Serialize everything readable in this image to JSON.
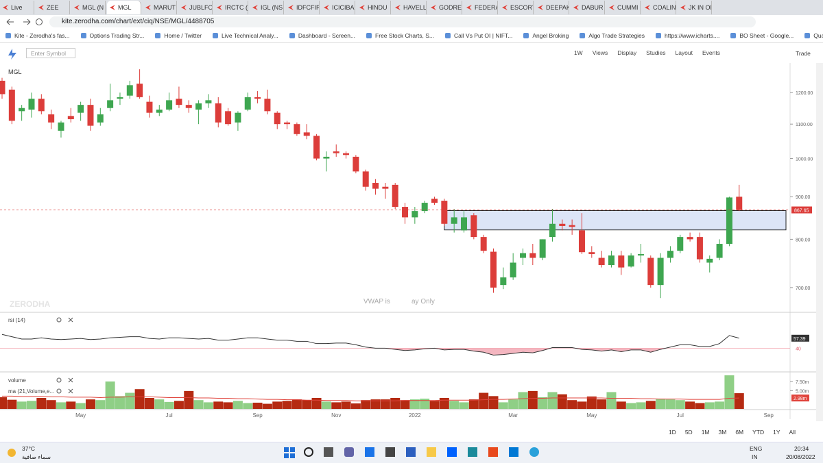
{
  "browser": {
    "tabs": [
      "Live",
      "ZEE",
      "MGL (N",
      "MGL",
      "MARUT",
      "JUBLFO",
      "IRCTC (",
      "IGL (NS",
      "IDFCFIR",
      "ICICIBA",
      "HINDU",
      "HAVELL",
      "GODRE",
      "FEDERA",
      "ESCORT",
      "DEEPAK",
      "DABUR",
      "CUMMI",
      "COALIN",
      "JK IN OF"
    ],
    "url": "kite.zerodha.com/chart/ext/ciq/NSE/MGL/4488705",
    "bookmarks": [
      "Kite - Zerodha's fas...",
      "Options Trading Str...",
      "Home / Twitter",
      "Live Technical Analy...",
      "Dashboard - Screen...",
      "Free Stock Charts, S...",
      "Call Vs Put OI | NIFT...",
      "Angel Broking",
      "Algo Trade Strategies",
      "https://www.icharts....",
      "BO Sheet - Google...",
      "Quantiply"
    ]
  },
  "toolbar": {
    "symbol_placeholder": "Enter Symbol",
    "buttons": [
      "1W",
      "Views",
      "Display",
      "Studies",
      "Layout",
      "Events"
    ],
    "trade": "Trade"
  },
  "chart_data": [
    {
      "type": "candlestick",
      "title": "MGL",
      "log_scale": true,
      "grid": false,
      "up_color": "#3ea650",
      "down_color": "#dc3d3a",
      "categories": [
        null,
        null,
        null,
        null,
        null,
        null,
        null,
        null,
        "May",
        null,
        null,
        null,
        null,
        null,
        null,
        null,
        null,
        "Jul",
        null,
        null,
        null,
        null,
        null,
        null,
        null,
        null,
        "Sep",
        null,
        null,
        null,
        null,
        null,
        null,
        null,
        "Nov",
        null,
        null,
        null,
        null,
        null,
        null,
        null,
        "2022",
        null,
        null,
        null,
        null,
        null,
        null,
        null,
        null,
        null,
        "Mar",
        null,
        null,
        null,
        null,
        null,
        null,
        null,
        "May",
        null,
        null,
        null,
        null,
        null,
        null,
        null,
        null,
        "Jul",
        null,
        null,
        null,
        null,
        null,
        null,
        null,
        null,
        "Sep"
      ],
      "open": [
        1240,
        1210,
        1140,
        1145,
        1180,
        1130,
        1080,
        1125,
        1135,
        1160,
        1105,
        1150,
        1180,
        1190,
        1230,
        1170,
        1135,
        1145,
        1180,
        1160,
        1145,
        1165,
        1165,
        1140,
        1105,
        1145,
        1185,
        1180,
        1135,
        1105,
        1100,
        1075,
        1065,
        1000,
        1020,
        1015,
        1005,
        965,
        935,
        925,
        930,
        875,
        850,
        865,
        895,
        890,
        835,
        820,
        855,
        805,
        773,
        705,
        720,
        760,
        770,
        760,
        805,
        835,
        832,
        820,
        772,
        760,
        745,
        765,
        742,
        765,
        760,
        705,
        760,
        775,
        805,
        805,
        750,
        760,
        790,
        900,
        null,
        null,
        null
      ],
      "high": [
        1250,
        1220,
        1160,
        1200,
        1195,
        1145,
        1110,
        1150,
        1170,
        1180,
        1150,
        1230,
        1200,
        1240,
        1280,
        1190,
        1160,
        1200,
        1220,
        1175,
        1175,
        1195,
        1185,
        1150,
        1140,
        1200,
        1205,
        1210,
        1140,
        1110,
        1105,
        1100,
        1070,
        1020,
        1040,
        1020,
        1010,
        970,
        945,
        935,
        935,
        885,
        875,
        890,
        900,
        895,
        870,
        865,
        860,
        810,
        780,
        740,
        770,
        780,
        790,
        800,
        870,
        845,
        845,
        860,
        785,
        775,
        775,
        775,
        770,
        790,
        765,
        770,
        785,
        810,
        815,
        815,
        765,
        800,
        900,
        930,
        null,
        null,
        null
      ],
      "low": [
        1180,
        1100,
        1110,
        1120,
        1130,
        1085,
        1060,
        1105,
        1110,
        1080,
        1095,
        1140,
        1160,
        1180,
        1180,
        1120,
        1125,
        1140,
        1150,
        1135,
        1100,
        1150,
        1090,
        1095,
        1080,
        1140,
        1165,
        1130,
        1085,
        1085,
        1065,
        1055,
        995,
        965,
        1005,
        1000,
        960,
        915,
        905,
        895,
        870,
        835,
        835,
        860,
        880,
        830,
        815,
        815,
        800,
        770,
        690,
        697,
        715,
        745,
        745,
        755,
        795,
        820,
        810,
        768,
        760,
        740,
        740,
        725,
        740,
        750,
        700,
        680,
        750,
        770,
        795,
        750,
        730,
        755,
        785,
        865,
        null,
        null,
        null
      ],
      "close": [
        1195,
        1110,
        1150,
        1180,
        1140,
        1105,
        1105,
        1115,
        1160,
        1095,
        1130,
        1175,
        1185,
        1225,
        1185,
        1135,
        1145,
        1175,
        1160,
        1150,
        1165,
        1175,
        1105,
        1100,
        1135,
        1185,
        1180,
        1140,
        1100,
        1100,
        1070,
        1065,
        1000,
        1005,
        1015,
        1010,
        965,
        925,
        920,
        920,
        875,
        850,
        865,
        885,
        885,
        835,
        850,
        850,
        805,
        775,
        700,
        720,
        750,
        770,
        760,
        800,
        835,
        830,
        828,
        772,
        768,
        745,
        765,
        740,
        765,
        768,
        705,
        760,
        775,
        805,
        800,
        757,
        758,
        790,
        898,
        867.65,
        null,
        null,
        null
      ],
      "ylim": [
        655,
        1295
      ],
      "yticks": [
        {
          "value": 1200,
          "label": "1200.00"
        },
        {
          "value": 1100,
          "label": "1100.00"
        },
        {
          "value": 1000,
          "label": "1000.00"
        },
        {
          "value": 900,
          "label": "900.00"
        },
        {
          "value": 800,
          "label": "800.00"
        },
        {
          "value": 700,
          "label": "700.00"
        }
      ],
      "zone": [
        821,
        866
      ],
      "watermark": "ZERODHA",
      "notice": [
        "VWAP is",
        "ay Only"
      ]
    },
    {
      "type": "line",
      "title": "rsi (14)",
      "color": "#333333",
      "fill_color": "#f4b6c0",
      "values": [
        64,
        60,
        56,
        56,
        58,
        56,
        55,
        56,
        57,
        55,
        56,
        58,
        59,
        60,
        60,
        57,
        56,
        58,
        58,
        57,
        56,
        57,
        54,
        54,
        56,
        58,
        58,
        56,
        54,
        54,
        52,
        52,
        48,
        48,
        49,
        49,
        46,
        42,
        40,
        40,
        38,
        36,
        37,
        39,
        40,
        37,
        38,
        38,
        35,
        33,
        28,
        29,
        31,
        33,
        32,
        36,
        41,
        41,
        41,
        38,
        37,
        35,
        37,
        34,
        37,
        37,
        33,
        38,
        42,
        46,
        46,
        43,
        43,
        48,
        62,
        57.39,
        null,
        null,
        null
      ],
      "ylim": [
        0,
        100
      ],
      "yticks": [
        40
      ]
    },
    {
      "type": "bar",
      "title": "volume",
      "up_color": "#8fcf86",
      "down_color": "#b52a12",
      "series": [
        {
          "name": "volume",
          "values": [
            3.2,
            2.5,
            2.0,
            2.2,
            3.0,
            2.4,
            1.8,
            2.0,
            1.6,
            2.6,
            2.4,
            7.5,
            3.5,
            4.4,
            5.4,
            3.0,
            2.6,
            1.9,
            2.2,
            4.9,
            2.4,
            1.8,
            2.0,
            1.8,
            2.2,
            1.6,
            1.7,
            1.4,
            2.0,
            2.2,
            2.6,
            2.4,
            3.0,
            2.0,
            1.8,
            2.0,
            1.5,
            2.4,
            2.6,
            2.6,
            3.0,
            2.4,
            2.6,
            2.8,
            2.2,
            3.0,
            2.2,
            1.8,
            2.6,
            4.4,
            3.5,
            1.8,
            2.6,
            4.6,
            4.9,
            3.2,
            4.6,
            4.0,
            2.4,
            2.0,
            3.4,
            2.6,
            4.6,
            2.0,
            1.6,
            1.8,
            2.2,
            2.8,
            2.6,
            2.4,
            2.0,
            1.6,
            1.8,
            2.0,
            9.2,
            4.3,
            null,
            null,
            null
          ]
        },
        {
          "name": "ma (21,Volume,e...",
          "color": "#e0443c",
          "last_label": "2.98m",
          "values": [
            3.5,
            3.5,
            3.4,
            3.4,
            3.4,
            3.3,
            3.3,
            3.2,
            3.2,
            3.2,
            3.1,
            3.2,
            3.2,
            3.3,
            3.3,
            3.3,
            3.2,
            3.1,
            3.1,
            3.1,
            3.0,
            3.0,
            2.9,
            2.9,
            2.8,
            2.8,
            2.7,
            2.6,
            2.6,
            2.5,
            2.5,
            2.4,
            2.4,
            2.3,
            2.3,
            2.3,
            2.2,
            2.2,
            2.2,
            2.2,
            2.2,
            2.3,
            2.3,
            2.3,
            2.3,
            2.4,
            2.4,
            2.4,
            2.4,
            2.5,
            2.6,
            2.6,
            2.7,
            2.8,
            2.9,
            2.9,
            3.0,
            3.0,
            3.0,
            3.0,
            3.0,
            3.0,
            2.9,
            2.9,
            2.9,
            2.8,
            2.8,
            2.7,
            2.7,
            2.7,
            2.6,
            2.6,
            2.6,
            2.6,
            2.9,
            2.98,
            null,
            null,
            null
          ]
        }
      ],
      "ylim": [
        0,
        9.75
      ],
      "yticks": [
        {
          "value": 7.5,
          "label": "7.50m"
        },
        {
          "value": 5,
          "label": "5.00m"
        }
      ]
    }
  ],
  "periods": [
    "1D",
    "5D",
    "1M",
    "3M",
    "6M",
    "YTD",
    "1Y",
    "All"
  ],
  "taskbar": {
    "temperature": "37°C",
    "weather": "سماء صافية",
    "language": "ENG",
    "region": "IN",
    "time": "20:34",
    "date": "20/08/2022"
  }
}
